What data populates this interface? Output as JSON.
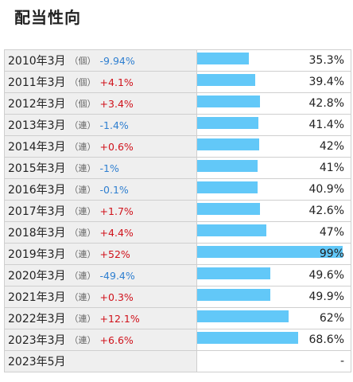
{
  "page": {
    "title": "配当性向"
  },
  "colors": {
    "bar": "#62c8f8",
    "positive": "#d0121b",
    "negative": "#2f7fd0"
  },
  "chart_data": {
    "type": "table",
    "title": "配当性向",
    "bar_scale_max": 99,
    "rows": [
      {
        "year": "2010年3月",
        "kind": "（個）",
        "growth": "-9.94%",
        "payout": 35.3,
        "payout_label": "35.3%"
      },
      {
        "year": "2011年3月",
        "kind": "（個）",
        "growth": "+4.1%",
        "payout": 39.4,
        "payout_label": "39.4%"
      },
      {
        "year": "2012年3月",
        "kind": "（個）",
        "growth": "+3.4%",
        "payout": 42.8,
        "payout_label": "42.8%"
      },
      {
        "year": "2013年3月",
        "kind": "（連）",
        "growth": "-1.4%",
        "payout": 41.4,
        "payout_label": "41.4%"
      },
      {
        "year": "2014年3月",
        "kind": "（連）",
        "growth": "+0.6%",
        "payout": 42,
        "payout_label": "42%"
      },
      {
        "year": "2015年3月",
        "kind": "（連）",
        "growth": "-1%",
        "payout": 41,
        "payout_label": "41%"
      },
      {
        "year": "2016年3月",
        "kind": "（連）",
        "growth": "-0.1%",
        "payout": 40.9,
        "payout_label": "40.9%"
      },
      {
        "year": "2017年3月",
        "kind": "（連）",
        "growth": "+1.7%",
        "payout": 42.6,
        "payout_label": "42.6%"
      },
      {
        "year": "2018年3月",
        "kind": "（連）",
        "growth": "+4.4%",
        "payout": 47,
        "payout_label": "47%"
      },
      {
        "year": "2019年3月",
        "kind": "（連）",
        "growth": "+52%",
        "payout": 99,
        "payout_label": "99%"
      },
      {
        "year": "2020年3月",
        "kind": "（連）",
        "growth": "-49.4%",
        "payout": 49.6,
        "payout_label": "49.6%"
      },
      {
        "year": "2021年3月",
        "kind": "（連）",
        "growth": "+0.3%",
        "payout": 49.9,
        "payout_label": "49.9%"
      },
      {
        "year": "2022年3月",
        "kind": "（連）",
        "growth": "+12.1%",
        "payout": 62,
        "payout_label": "62%"
      },
      {
        "year": "2023年3月",
        "kind": "（連）",
        "growth": "+6.6%",
        "payout": 68.6,
        "payout_label": "68.6%"
      },
      {
        "year": "2023年5月",
        "kind": "",
        "growth": "",
        "payout": null,
        "payout_label": "-"
      }
    ]
  }
}
